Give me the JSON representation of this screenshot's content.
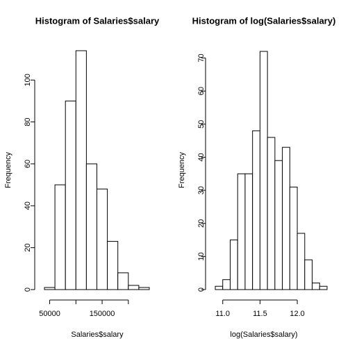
{
  "chart_data": [
    {
      "type": "histogram",
      "title": "Histogram of Salaries$salary",
      "xlabel": "Salaries$salary",
      "ylabel": "Frequency",
      "bins": [
        40000,
        60000,
        80000,
        100000,
        120000,
        140000,
        160000,
        180000,
        200000,
        220000,
        240000
      ],
      "counts": [
        1,
        50,
        90,
        114,
        60,
        48,
        23,
        8,
        2,
        1
      ],
      "xlim": [
        40000,
        240000
      ],
      "ylim": [
        0,
        114
      ],
      "xticks": [
        50000,
        {
          "value": 100000,
          "label": null
        },
        150000,
        {
          "value": 200000,
          "label": null
        }
      ],
      "yticks": [
        0,
        20,
        40,
        60,
        80,
        100
      ],
      "color": "#ffffff"
    },
    {
      "type": "histogram",
      "title": "Histogram of log(Salaries$salary)",
      "xlabel": "log(Salaries$salary)",
      "ylabel": "Frequency",
      "bins": [
        10.9,
        11.0,
        11.1,
        11.2,
        11.3,
        11.4,
        11.5,
        11.6,
        11.7,
        11.8,
        11.9,
        12.0,
        12.1,
        12.2,
        12.3,
        12.4
      ],
      "counts": [
        1,
        3,
        15,
        35,
        35,
        48,
        72,
        46,
        39,
        43,
        31,
        17,
        9,
        2,
        1
      ],
      "xlim": [
        10.9,
        12.4
      ],
      "ylim": [
        0,
        72
      ],
      "xticks": [
        {
          "value": 11.0,
          "label": "11.0"
        },
        {
          "value": 11.5,
          "label": "11.5"
        },
        {
          "value": 12.0,
          "label": "12.0"
        }
      ],
      "yticks": [
        0,
        10,
        20,
        30,
        40,
        50,
        60,
        70
      ],
      "color": "#ffffff"
    }
  ]
}
